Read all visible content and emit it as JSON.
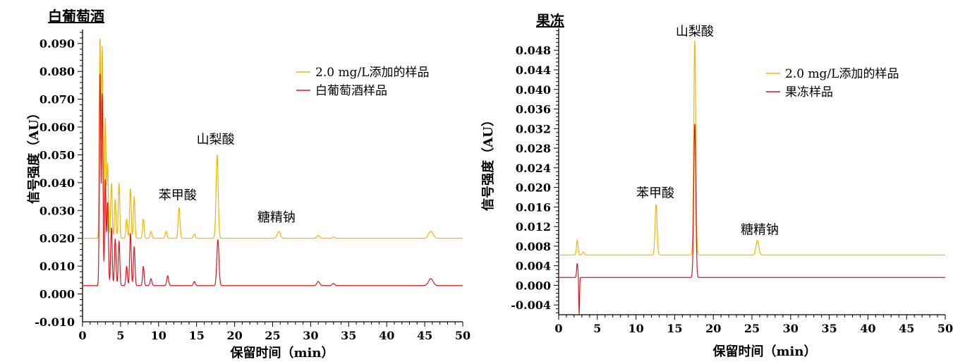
{
  "chart_data": [
    {
      "type": "line",
      "title": "白葡萄酒",
      "xlabel": "保留时间（min）",
      "ylabel": "信号强度（AU）",
      "xlim": [
        0,
        50
      ],
      "ylim": [
        -0.01,
        0.095
      ],
      "x_ticks": [
        0,
        5,
        10,
        15,
        20,
        25,
        30,
        35,
        40,
        45,
        50
      ],
      "x_tick_labels": [
        "0",
        "5",
        "10",
        "15",
        "20",
        "25",
        "30",
        "35",
        "40",
        "45",
        "50"
      ],
      "y_ticks": [
        -0.01,
        0.0,
        0.01,
        0.02,
        0.03,
        0.04,
        0.05,
        0.06,
        0.07,
        0.08,
        0.09
      ],
      "y_tick_labels": [
        "-0.010",
        "0.000",
        "0.010",
        "0.020",
        "0.030",
        "0.040",
        "0.050",
        "0.060",
        "0.070",
        "0.080",
        "0.090"
      ],
      "legend_position": "top-right",
      "series": [
        {
          "name": "2.0 mg/L添加的样品",
          "color": "#f5b400",
          "baseline": 0.02,
          "peaks": [
            {
              "x": 2.3,
              "y": 0.0925,
              "w": 0.09
            },
            {
              "x": 2.6,
              "y": 0.089,
              "w": 0.09
            },
            {
              "x": 3.0,
              "y": 0.063,
              "w": 0.09
            },
            {
              "x": 3.3,
              "y": 0.047,
              "w": 0.1
            },
            {
              "x": 3.8,
              "y": 0.04,
              "w": 0.1
            },
            {
              "x": 4.3,
              "y": 0.034,
              "w": 0.1
            },
            {
              "x": 4.8,
              "y": 0.04,
              "w": 0.1
            },
            {
              "x": 5.8,
              "y": 0.027,
              "w": 0.1
            },
            {
              "x": 6.3,
              "y": 0.038,
              "w": 0.1
            },
            {
              "x": 6.8,
              "y": 0.035,
              "w": 0.1
            },
            {
              "x": 8.0,
              "y": 0.027,
              "w": 0.1
            },
            {
              "x": 9.0,
              "y": 0.0225,
              "w": 0.12
            },
            {
              "x": 11.0,
              "y": 0.0225,
              "w": 0.12
            },
            {
              "x": 12.7,
              "y": 0.031,
              "w": 0.12
            },
            {
              "x": 14.7,
              "y": 0.0215,
              "w": 0.12
            },
            {
              "x": 17.7,
              "y": 0.05,
              "w": 0.14
            },
            {
              "x": 25.8,
              "y": 0.0225,
              "w": 0.2
            },
            {
              "x": 31.0,
              "y": 0.021,
              "w": 0.18
            },
            {
              "x": 33.0,
              "y": 0.0205,
              "w": 0.15
            },
            {
              "x": 45.8,
              "y": 0.0225,
              "w": 0.3
            }
          ]
        },
        {
          "name": "白葡萄酒样品",
          "color": "#e0151b",
          "baseline": 0.003,
          "peaks": [
            {
              "x": 2.3,
              "y": 0.08,
              "w": 0.09
            },
            {
              "x": 2.6,
              "y": 0.072,
              "w": 0.09
            },
            {
              "x": 3.0,
              "y": 0.041,
              "w": 0.09
            },
            {
              "x": 3.3,
              "y": 0.033,
              "w": 0.1
            },
            {
              "x": 3.8,
              "y": 0.024,
              "w": 0.1
            },
            {
              "x": 4.3,
              "y": 0.02,
              "w": 0.1
            },
            {
              "x": 4.8,
              "y": 0.019,
              "w": 0.1
            },
            {
              "x": 5.8,
              "y": 0.01,
              "w": 0.1
            },
            {
              "x": 6.3,
              "y": 0.022,
              "w": 0.1
            },
            {
              "x": 6.8,
              "y": 0.017,
              "w": 0.1
            },
            {
              "x": 8.0,
              "y": 0.01,
              "w": 0.1
            },
            {
              "x": 9.0,
              "y": 0.0055,
              "w": 0.12
            },
            {
              "x": 11.2,
              "y": 0.0065,
              "w": 0.12
            },
            {
              "x": 14.7,
              "y": 0.0045,
              "w": 0.12
            },
            {
              "x": 17.8,
              "y": 0.0195,
              "w": 0.14
            },
            {
              "x": 31.0,
              "y": 0.0045,
              "w": 0.18
            },
            {
              "x": 33.0,
              "y": 0.0038,
              "w": 0.15
            },
            {
              "x": 45.8,
              "y": 0.0055,
              "w": 0.3
            }
          ]
        }
      ],
      "annotations": [
        {
          "text": "苯甲酸",
          "x": 12.5,
          "y": 0.034
        },
        {
          "text": "山梨酸",
          "x": 17.5,
          "y": 0.054
        },
        {
          "text": "糖精钠",
          "x": 25.5,
          "y": 0.026
        }
      ]
    },
    {
      "type": "line",
      "title": "果冻",
      "xlabel": "保留时间（min）",
      "ylabel": "信号强度（AU）",
      "xlim": [
        0,
        50
      ],
      "ylim": [
        -0.006,
        0.0525
      ],
      "x_ticks": [
        0,
        5,
        10,
        15,
        20,
        25,
        30,
        35,
        40,
        45,
        50
      ],
      "x_tick_labels": [
        "0",
        "5",
        "10",
        "15",
        "20",
        "25",
        "30",
        "35",
        "40",
        "45",
        "50"
      ],
      "y_ticks": [
        -0.004,
        0.0,
        0.004,
        0.008,
        0.012,
        0.016,
        0.02,
        0.024,
        0.028,
        0.032,
        0.036,
        0.04,
        0.044,
        0.048
      ],
      "y_tick_labels": [
        "-0.004",
        "0.000",
        "0.004",
        "0.008",
        "0.012",
        "0.016",
        "0.020",
        "0.024",
        "0.028",
        "0.032",
        "0.036",
        "0.040",
        "0.044",
        "0.048"
      ],
      "legend_position": "top-right",
      "series": [
        {
          "name": "2.0 mg/L添加的样品",
          "color": "#f5b400",
          "baseline": 0.0062,
          "peaks": [
            {
              "x": 2.4,
              "y": 0.0092,
              "w": 0.1
            },
            {
              "x": 3.2,
              "y": 0.0068,
              "w": 0.12
            },
            {
              "x": 12.6,
              "y": 0.0165,
              "w": 0.13
            },
            {
              "x": 17.6,
              "y": 0.05,
              "w": 0.13
            },
            {
              "x": 25.7,
              "y": 0.0092,
              "w": 0.18
            }
          ]
        },
        {
          "name": "果冻样品",
          "color": "#e0151b",
          "baseline": 0.0016,
          "peaks": [
            {
              "x": 2.4,
              "y": 0.0045,
              "w": 0.08
            },
            {
              "x": 2.65,
              "y": -0.006,
              "w": 0.05
            },
            {
              "x": 17.6,
              "y": 0.033,
              "w": 0.13
            }
          ]
        }
      ],
      "annotations": [
        {
          "text": "苯甲酸",
          "x": 12.5,
          "y": 0.018
        },
        {
          "text": "山梨酸",
          "x": 17.6,
          "y": 0.051
        },
        {
          "text": "糖精钠",
          "x": 26.0,
          "y": 0.0105
        }
      ]
    }
  ]
}
